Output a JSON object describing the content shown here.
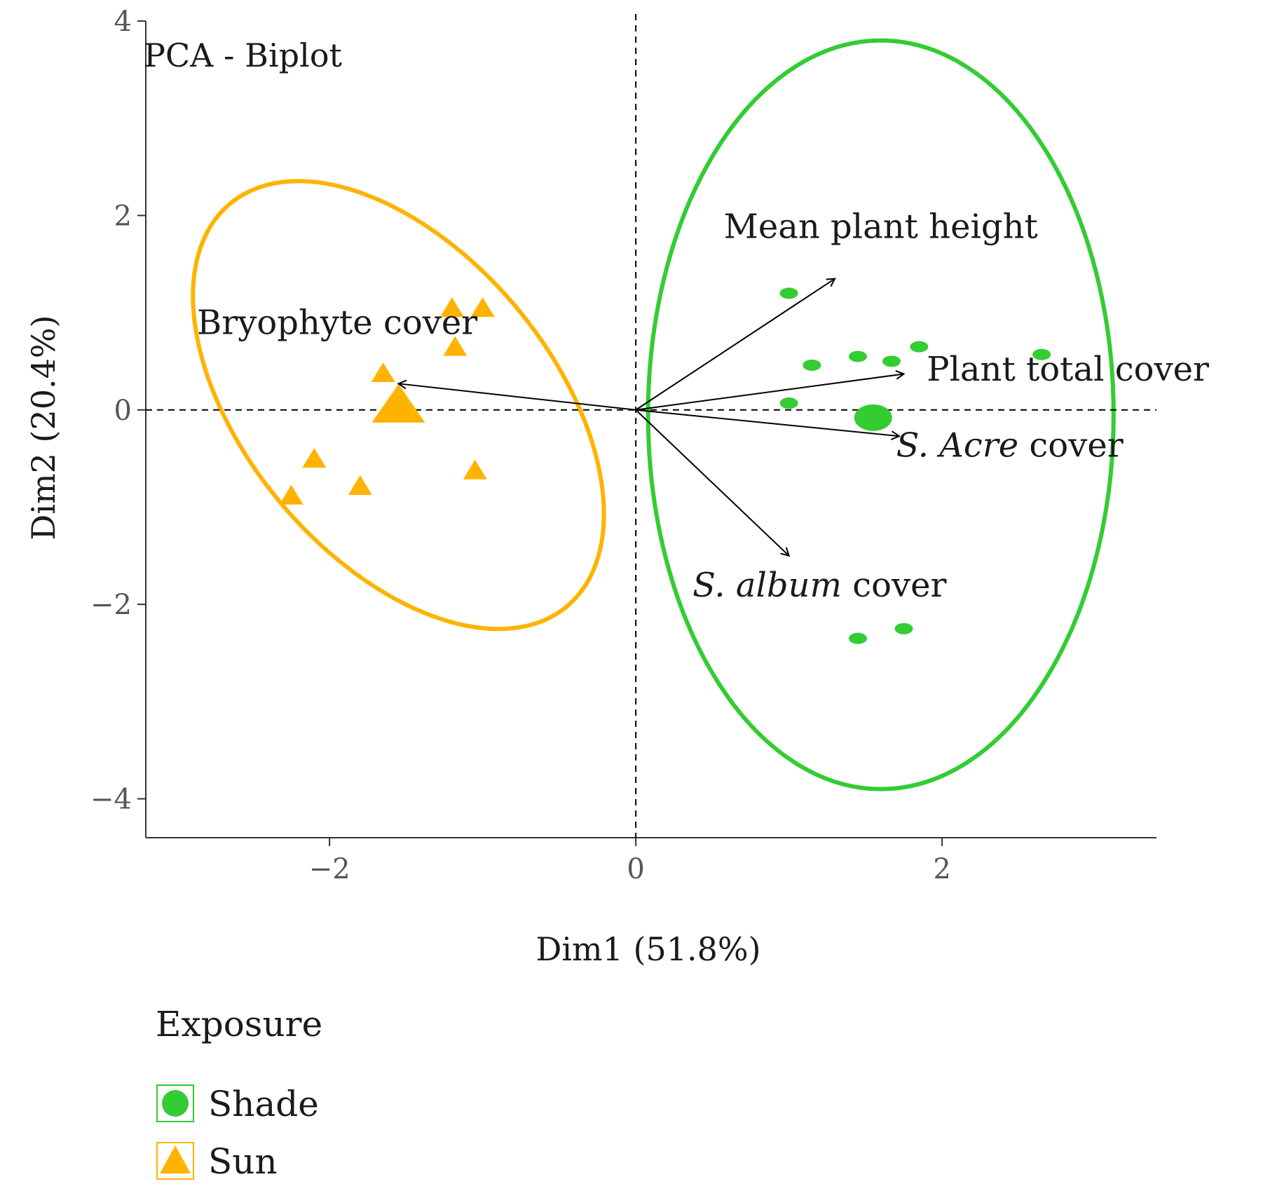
{
  "chart_data": {
    "type": "scatter",
    "title": "PCA - Biplot",
    "xlabel": "Dim1 (51.8%)",
    "ylabel": "Dim2 (20.4%)",
    "xlim": [
      -3.2,
      3.4
    ],
    "ylim": [
      -4.4,
      4.0
    ],
    "x_ticks": [
      {
        "value": -2,
        "label": "−2"
      },
      {
        "value": 0,
        "label": "0"
      },
      {
        "value": 2,
        "label": "2"
      }
    ],
    "y_ticks": [
      {
        "value": -4,
        "label": "−4"
      },
      {
        "value": -2,
        "label": "−2"
      },
      {
        "value": 0,
        "label": "0"
      },
      {
        "value": 2,
        "label": "2"
      },
      {
        "value": 4,
        "label": "4"
      }
    ],
    "grid": false,
    "reference_lines": {
      "x": 0,
      "y": 0,
      "style": "dashed"
    },
    "legend": {
      "title": "Exposure",
      "position": "bottom-left",
      "entries": [
        {
          "label": "Shade",
          "marker": "circle",
          "color": "#33cc33"
        },
        {
          "label": "Sun",
          "marker": "triangle",
          "color": "#ffb300"
        }
      ]
    },
    "series": [
      {
        "name": "Shade",
        "color": "#33cc33",
        "marker": "circle",
        "points": [
          [
            1.0,
            1.2
          ],
          [
            1.15,
            0.46
          ],
          [
            1.45,
            0.55
          ],
          [
            1.85,
            0.65
          ],
          [
            1.67,
            0.5
          ],
          [
            2.65,
            0.57
          ],
          [
            1.0,
            0.07
          ],
          [
            1.45,
            -2.35
          ],
          [
            1.75,
            -2.25
          ]
        ],
        "centroid": [
          1.55,
          -0.08
        ],
        "ellipse": {
          "center": [
            1.6,
            -0.05
          ],
          "rx": 1.52,
          "ry": 3.85,
          "angle_deg": 0
        }
      },
      {
        "name": "Sun",
        "color": "#ffb300",
        "marker": "triangle",
        "points": [
          [
            -1.2,
            1.05
          ],
          [
            -1.0,
            1.05
          ],
          [
            -1.18,
            0.65
          ],
          [
            -1.65,
            0.38
          ],
          [
            -2.1,
            -0.5
          ],
          [
            -2.25,
            -0.88
          ],
          [
            -1.8,
            -0.78
          ],
          [
            -1.05,
            -0.62
          ]
        ],
        "centroid": [
          -1.55,
          0.05
        ],
        "ellipse": {
          "center": [
            -1.55,
            0.05
          ],
          "rx": 1.0,
          "ry": 2.7,
          "angle_deg": -40
        }
      }
    ],
    "variables": [
      {
        "label": "Mean plant height",
        "x": 1.3,
        "y": 1.35,
        "label_x": 1.6,
        "label_y": 1.77,
        "anchor": "middle"
      },
      {
        "label": "Plant total cover",
        "x": 1.75,
        "y": 0.37,
        "label_x": 1.9,
        "label_y": 0.3,
        "anchor": "start"
      },
      {
        "label": "S. Acre cover",
        "italic": "S. Acre",
        "rest": " cover",
        "x": 1.72,
        "y": -0.27,
        "label_x": 1.7,
        "label_y": -0.48,
        "anchor": "start"
      },
      {
        "label": "S. album cover",
        "italic": "S. album",
        "rest": " cover",
        "x": 1.0,
        "y": -1.5,
        "label_x": 1.2,
        "label_y": -1.92,
        "anchor": "middle"
      },
      {
        "label": "Bryophyte cover",
        "x": -1.55,
        "y": 0.27,
        "label_x": -1.95,
        "label_y": 0.78,
        "anchor": "middle"
      }
    ]
  }
}
